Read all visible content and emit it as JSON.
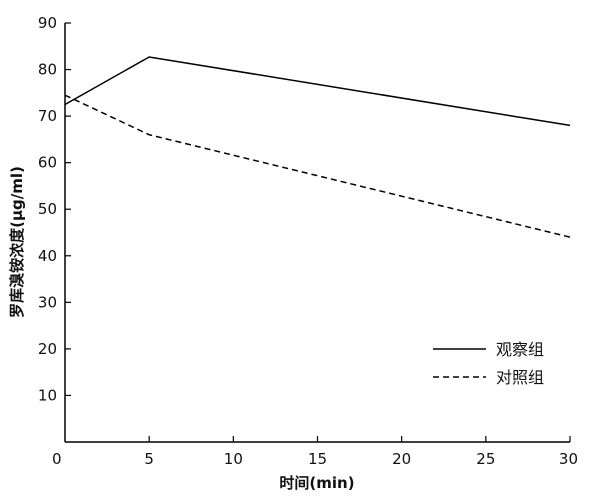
{
  "chart_data": {
    "type": "line",
    "xlabel": "时间(min)",
    "ylabel": "罗库溴铵浓度(μg/ml)",
    "xlim": [
      0,
      30
    ],
    "ylim": [
      0,
      90
    ],
    "xticks": [
      0,
      5,
      10,
      15,
      20,
      25,
      30
    ],
    "yticks": [
      10,
      20,
      30,
      40,
      50,
      60,
      70,
      80,
      90
    ],
    "grid": false,
    "legend": "bottom-right",
    "series": [
      {
        "name": "观察组",
        "style": "solid",
        "color": "#000000",
        "x": [
          0,
          5,
          30
        ],
        "y": [
          72.5,
          82.7,
          68.0
        ]
      },
      {
        "name": "对照组",
        "style": "dashed",
        "color": "#000000",
        "x": [
          0,
          5,
          30
        ],
        "y": [
          74.5,
          66.0,
          44.0
        ]
      }
    ]
  }
}
